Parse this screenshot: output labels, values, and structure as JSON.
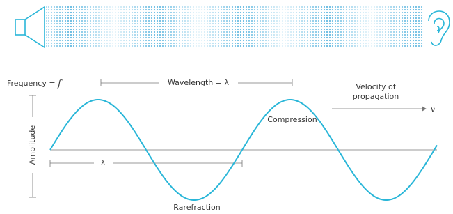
{
  "frequency": {
    "label": "Frequency =",
    "symbol": "f"
  },
  "wavelength_label": "Wavelength = λ",
  "velocity": {
    "lines": [
      "Velocity of",
      "propagation"
    ],
    "symbol": "ν"
  },
  "compression": "Compression",
  "rarefraction": "Rarefraction",
  "amplitude": "Amplitude",
  "lambda": "λ"
}
